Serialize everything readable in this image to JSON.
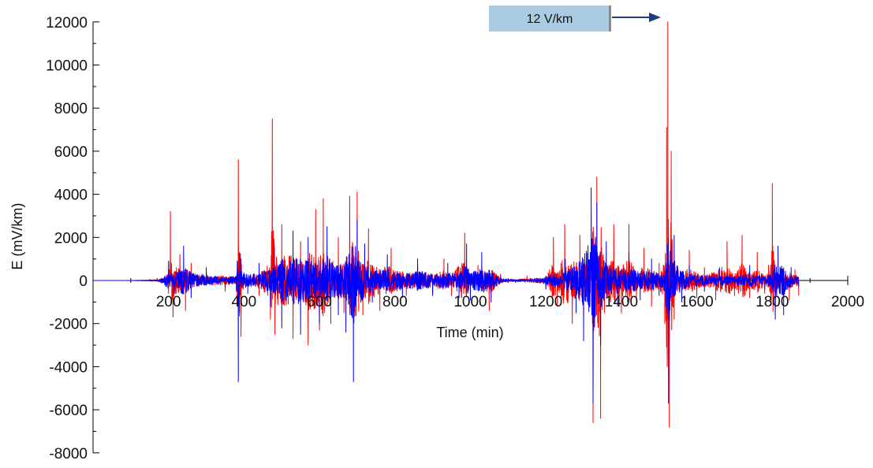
{
  "chart_data": {
    "type": "line",
    "title": "",
    "xlabel": "Time (min)",
    "ylabel": "E (mV/km)",
    "xlim": [
      0,
      2000
    ],
    "ylim": [
      -8000,
      12000
    ],
    "x_ticks": [
      "200",
      "400",
      "600",
      "800",
      "1000",
      "1200",
      "1400",
      "1600",
      "1800",
      "2000"
    ],
    "y_ticks": [
      "12000",
      "10000",
      "8000",
      "6000",
      "4000",
      "2000",
      "0",
      "-2000",
      "-4000",
      "-6000",
      "-8000"
    ],
    "grid": false,
    "legend": "none",
    "series": [
      {
        "color": "#ff0000",
        "description_points": [
          [
            0,
            0
          ],
          [
            100,
            0
          ],
          [
            150,
            60
          ],
          [
            170,
            100
          ],
          [
            200,
            -600
          ],
          [
            205,
            3200
          ],
          [
            212,
            -1700
          ],
          [
            230,
            1200
          ],
          [
            245,
            -1400
          ],
          [
            260,
            800
          ],
          [
            300,
            400
          ],
          [
            350,
            -500
          ],
          [
            380,
            -400
          ],
          [
            385,
            5600
          ],
          [
            392,
            -2600
          ],
          [
            400,
            300
          ],
          [
            440,
            -700
          ],
          [
            470,
            -1800
          ],
          [
            475,
            7500
          ],
          [
            482,
            -2500
          ],
          [
            500,
            2600
          ],
          [
            530,
            -2700
          ],
          [
            550,
            1800
          ],
          [
            570,
            -3000
          ],
          [
            590,
            3300
          ],
          [
            600,
            -2300
          ],
          [
            610,
            3800
          ],
          [
            630,
            -2000
          ],
          [
            650,
            2000
          ],
          [
            665,
            -1500
          ],
          [
            680,
            3900
          ],
          [
            700,
            4100
          ],
          [
            715,
            -1600
          ],
          [
            730,
            2400
          ],
          [
            760,
            -1400
          ],
          [
            790,
            1500
          ],
          [
            830,
            -700
          ],
          [
            860,
            900
          ],
          [
            900,
            -600
          ],
          [
            930,
            1000
          ],
          [
            950,
            -700
          ],
          [
            985,
            2200
          ],
          [
            1000,
            -800
          ],
          [
            1020,
            700
          ],
          [
            1050,
            -1400
          ],
          [
            1080,
            300
          ],
          [
            1100,
            -100
          ],
          [
            1150,
            200
          ],
          [
            1200,
            -300
          ],
          [
            1220,
            2000
          ],
          [
            1230,
            -1200
          ],
          [
            1250,
            2600
          ],
          [
            1270,
            -2000
          ],
          [
            1290,
            2100
          ],
          [
            1300,
            -2200
          ],
          [
            1320,
            1600
          ],
          [
            1325,
            -6600
          ],
          [
            1335,
            4800
          ],
          [
            1345,
            -6400
          ],
          [
            1355,
            -1500
          ],
          [
            1380,
            2600
          ],
          [
            1400,
            -1500
          ],
          [
            1420,
            2600
          ],
          [
            1440,
            -800
          ],
          [
            1460,
            1500
          ],
          [
            1480,
            -1200
          ],
          [
            1500,
            800
          ],
          [
            1515,
            -2000
          ],
          [
            1520,
            7100
          ],
          [
            1523,
            12000
          ],
          [
            1527,
            -6800
          ],
          [
            1532,
            6000
          ],
          [
            1540,
            -1800
          ],
          [
            1560,
            -900
          ],
          [
            1580,
            1400
          ],
          [
            1600,
            -800
          ],
          [
            1620,
            600
          ],
          [
            1650,
            -900
          ],
          [
            1680,
            1800
          ],
          [
            1700,
            -700
          ],
          [
            1720,
            2100
          ],
          [
            1740,
            -800
          ],
          [
            1760,
            1300
          ],
          [
            1780,
            -600
          ],
          [
            1790,
            700
          ],
          [
            1800,
            4500
          ],
          [
            1808,
            -1200
          ],
          [
            1830,
            600
          ],
          [
            1845,
            -900
          ],
          [
            1860,
            500
          ],
          [
            1870,
            -700
          ]
        ]
      },
      {
        "color": "#0000ff",
        "description_points": [
          [
            0,
            0
          ],
          [
            100,
            0
          ],
          [
            150,
            40
          ],
          [
            180,
            -100
          ],
          [
            200,
            900
          ],
          [
            215,
            -600
          ],
          [
            240,
            1600
          ],
          [
            260,
            -800
          ],
          [
            300,
            600
          ],
          [
            350,
            -300
          ],
          [
            380,
            -500
          ],
          [
            385,
            -4700
          ],
          [
            392,
            1000
          ],
          [
            410,
            -600
          ],
          [
            440,
            800
          ],
          [
            470,
            -1200
          ],
          [
            480,
            1500
          ],
          [
            500,
            -2200
          ],
          [
            530,
            2300
          ],
          [
            550,
            -2500
          ],
          [
            570,
            2000
          ],
          [
            600,
            -2000
          ],
          [
            620,
            2500
          ],
          [
            650,
            -1600
          ],
          [
            670,
            -2400
          ],
          [
            690,
            -4700
          ],
          [
            700,
            2800
          ],
          [
            720,
            1700
          ],
          [
            740,
            -1000
          ],
          [
            780,
            1200
          ],
          [
            820,
            -800
          ],
          [
            860,
            1000
          ],
          [
            900,
            -700
          ],
          [
            940,
            800
          ],
          [
            970,
            -800
          ],
          [
            990,
            1700
          ],
          [
            1000,
            -900
          ],
          [
            1030,
            1300
          ],
          [
            1055,
            -1000
          ],
          [
            1080,
            200
          ],
          [
            1120,
            -100
          ],
          [
            1160,
            100
          ],
          [
            1200,
            -400
          ],
          [
            1250,
            1000
          ],
          [
            1280,
            -1500
          ],
          [
            1300,
            -2800
          ],
          [
            1320,
            4300
          ],
          [
            1325,
            -5700
          ],
          [
            1335,
            3600
          ],
          [
            1345,
            -3000
          ],
          [
            1360,
            1800
          ],
          [
            1390,
            -1200
          ],
          [
            1420,
            1300
          ],
          [
            1450,
            -900
          ],
          [
            1480,
            1000
          ],
          [
            1500,
            -700
          ],
          [
            1518,
            -1200
          ],
          [
            1525,
            -5700
          ],
          [
            1532,
            1700
          ],
          [
            1540,
            2100
          ],
          [
            1560,
            -1000
          ],
          [
            1580,
            700
          ],
          [
            1620,
            -500
          ],
          [
            1660,
            600
          ],
          [
            1700,
            -400
          ],
          [
            1740,
            700
          ],
          [
            1780,
            -400
          ],
          [
            1800,
            800
          ],
          [
            1808,
            -1800
          ],
          [
            1815,
            1600
          ],
          [
            1830,
            -1600
          ],
          [
            1850,
            600
          ],
          [
            1870,
            -300
          ]
        ]
      }
    ],
    "annotation": {
      "text": "12 V/km",
      "points_to": {
        "x": 1523,
        "y": 12000
      },
      "box_color": "#a9cce3",
      "arrow_color": "#1f3f7a"
    }
  }
}
